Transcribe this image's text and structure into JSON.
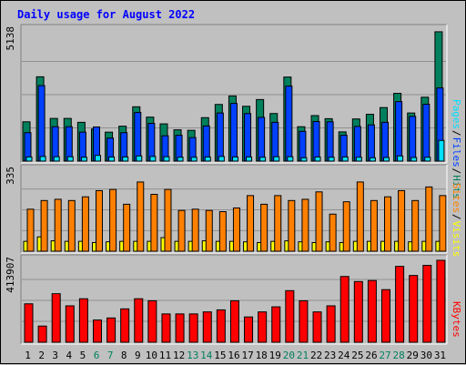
{
  "title": "Daily usage for August 2022",
  "colors": {
    "hits": "#00805c",
    "files": "#0040ff",
    "pages": "#00e0ff",
    "visits": "#ffff00",
    "sites": "#ff8000",
    "kbytes": "#ff0000",
    "weekend": "#00805c",
    "weekday": "#000000"
  },
  "chart_data": [
    {
      "type": "bar",
      "panel": "hits-files-pages",
      "y_max_label": "5138",
      "ylim": [
        0,
        5138
      ],
      "legend": [
        "Pages",
        "/",
        "Files",
        "/",
        "Hits"
      ],
      "categories": [
        "1",
        "2",
        "3",
        "4",
        "5",
        "6",
        "7",
        "8",
        "9",
        "10",
        "11",
        "12",
        "13",
        "14",
        "15",
        "16",
        "17",
        "18",
        "19",
        "20",
        "21",
        "22",
        "23",
        "24",
        "25",
        "26",
        "27",
        "28",
        "29",
        "30",
        "31"
      ],
      "series": [
        {
          "name": "Hits",
          "values": [
            1520,
            3260,
            1650,
            1650,
            1500,
            1240,
            1120,
            1350,
            2100,
            1700,
            1440,
            1210,
            1190,
            1680,
            2190,
            2520,
            2120,
            2380,
            1840,
            3250,
            1330,
            1760,
            1640,
            1130,
            1630,
            1810,
            2070,
            2620,
            1860,
            2470,
            5000
          ]
        },
        {
          "name": "Files",
          "values": [
            1100,
            2920,
            1330,
            1330,
            1120,
            1320,
            890,
            1100,
            1880,
            1460,
            980,
            1000,
            910,
            1360,
            1860,
            2230,
            1840,
            1690,
            1500,
            2900,
            1150,
            1530,
            1520,
            1000,
            1340,
            1400,
            1500,
            2300,
            1730,
            2200,
            2830
          ]
        },
        {
          "name": "Pages",
          "values": [
            160,
            180,
            170,
            170,
            150,
            220,
            160,
            160,
            200,
            180,
            170,
            150,
            150,
            160,
            180,
            160,
            160,
            150,
            170,
            170,
            130,
            160,
            150,
            160,
            150,
            130,
            140,
            200,
            140,
            150,
            800
          ]
        }
      ]
    },
    {
      "type": "bar",
      "panel": "visits-sites",
      "y_max_label": "335",
      "ylim": [
        0,
        335
      ],
      "legend": [
        "Sites",
        "/",
        "Visits"
      ],
      "categories": [
        "1",
        "2",
        "3",
        "4",
        "5",
        "6",
        "7",
        "8",
        "9",
        "10",
        "11",
        "12",
        "13",
        "14",
        "15",
        "16",
        "17",
        "18",
        "19",
        "20",
        "21",
        "22",
        "23",
        "24",
        "25",
        "26",
        "27",
        "28",
        "29",
        "30",
        "31"
      ],
      "series": [
        {
          "name": "Visits",
          "values": [
            40,
            58,
            42,
            40,
            40,
            35,
            38,
            40,
            40,
            40,
            55,
            40,
            40,
            42,
            40,
            40,
            38,
            35,
            40,
            42,
            38,
            35,
            38,
            35,
            40,
            40,
            40,
            40,
            38,
            40,
            40
          ]
        },
        {
          "name": "Sites",
          "values": [
            170,
            205,
            210,
            205,
            220,
            245,
            250,
            190,
            280,
            230,
            250,
            165,
            170,
            165,
            160,
            175,
            225,
            190,
            225,
            205,
            210,
            240,
            150,
            200,
            280,
            205,
            220,
            245,
            205,
            260,
            225
          ]
        }
      ]
    },
    {
      "type": "bar",
      "panel": "kbytes",
      "y_max_label": "413907",
      "ylim": [
        0,
        413907
      ],
      "legend": [
        "KBytes"
      ],
      "categories": [
        "1",
        "2",
        "3",
        "4",
        "5",
        "6",
        "7",
        "8",
        "9",
        "10",
        "11",
        "12",
        "13",
        "14",
        "15",
        "16",
        "17",
        "18",
        "19",
        "20",
        "21",
        "22",
        "23",
        "24",
        "25",
        "26",
        "27",
        "28",
        "29",
        "30",
        "31"
      ],
      "series": [
        {
          "name": "KBytes",
          "values": [
            190000,
            80000,
            240000,
            180000,
            215000,
            110000,
            120000,
            165000,
            215000,
            205000,
            140000,
            140000,
            140000,
            150000,
            160000,
            205000,
            125000,
            150000,
            175000,
            255000,
            205000,
            150000,
            180000,
            325000,
            300000,
            305000,
            260000,
            375000,
            330000,
            380000,
            405000
          ]
        }
      ]
    }
  ],
  "weekend_days": [
    "6",
    "7",
    "13",
    "14",
    "20",
    "21",
    "27",
    "28"
  ]
}
